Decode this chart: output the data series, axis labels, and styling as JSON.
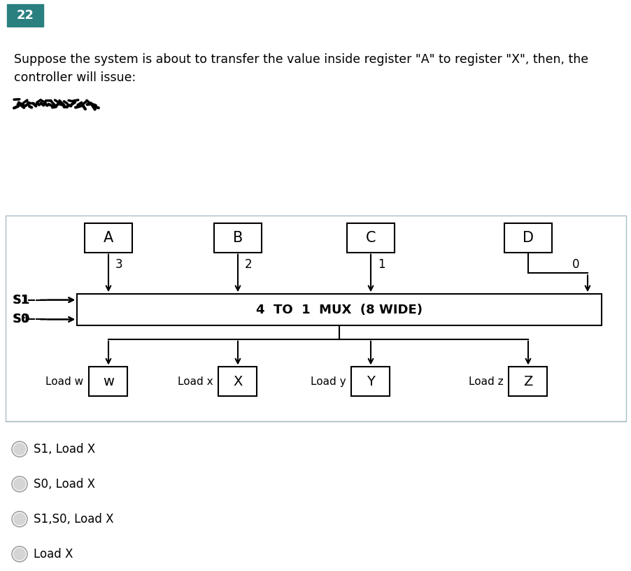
{
  "background_top": "#dde8ed",
  "background_bottom": "#ffffff",
  "title_box_color": "#2a7f7f",
  "title_box_text": "22",
  "question_text": "Suppose the system is about to transfer the value inside register \"A\" to register \"X\", then, the\ncontroller will issue:",
  "question_fontsize": 12.5,
  "register_labels": [
    "A",
    "B",
    "C",
    "D"
  ],
  "mux_label": "4  TO  1  MUX  (8 WIDE)",
  "input_numbers": [
    "3",
    "2",
    "1",
    "0"
  ],
  "s_labels": [
    "S1—→",
    "S0—→"
  ],
  "s_label_texts": [
    "S1",
    "S0"
  ],
  "output_registers": [
    "w",
    "X",
    "Y",
    "Z"
  ],
  "load_labels": [
    "Load w",
    "Load x",
    "Load y",
    "Load z"
  ],
  "options": [
    "S1, Load X",
    "S0, Load X",
    "S1,S0, Load X",
    "Load X"
  ],
  "option_fontsize": 12,
  "diagram_bg": "#ffffff",
  "box_edge": "#000000",
  "text_color": "#000000"
}
